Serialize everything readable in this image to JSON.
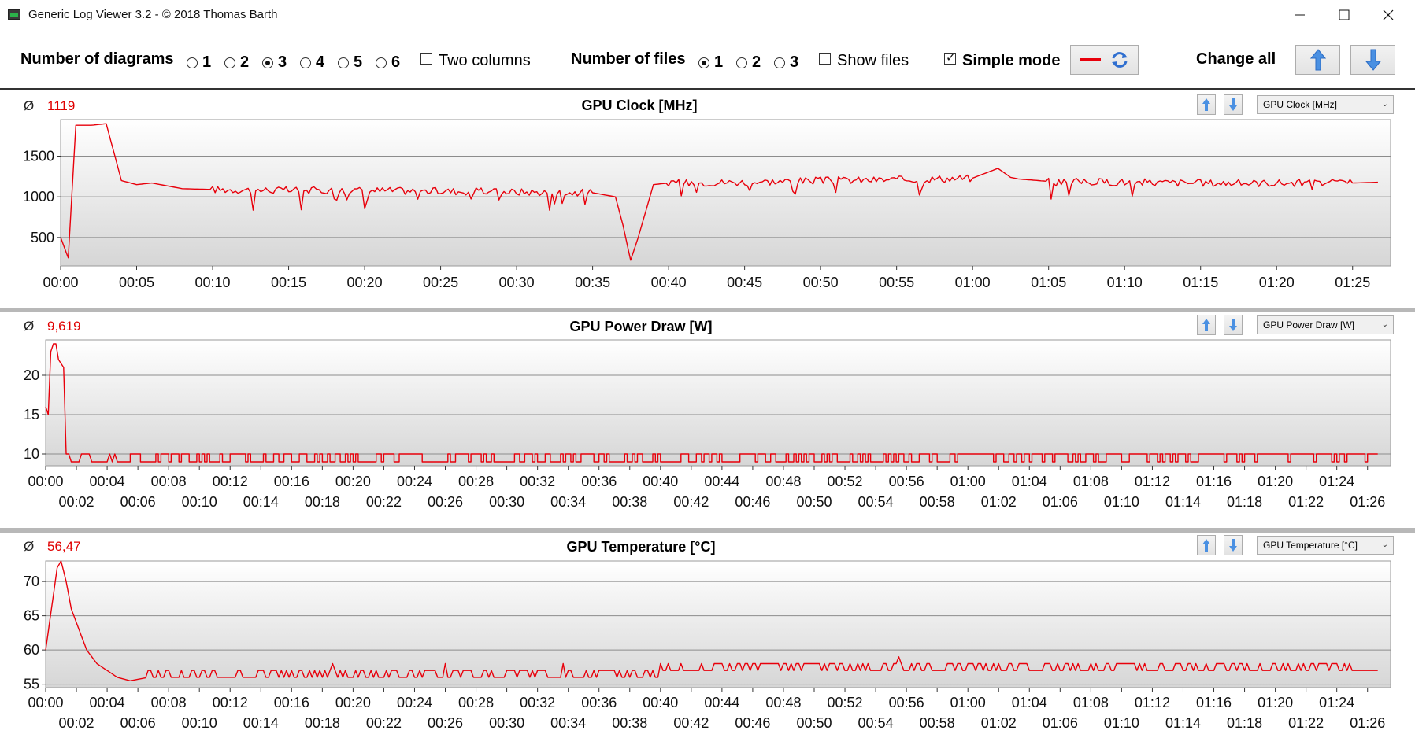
{
  "window": {
    "title": "Generic Log Viewer 3.2 - © 2018 Thomas Barth"
  },
  "toolbar": {
    "number_of_diagrams_label": "Number of diagrams",
    "diagram_options": [
      "1",
      "2",
      "3",
      "4",
      "5",
      "6"
    ],
    "diagram_selected": "3",
    "two_columns_label": "Two columns",
    "two_columns_checked": false,
    "number_of_files_label": "Number of files",
    "file_options": [
      "1",
      "2",
      "3"
    ],
    "file_selected": "1",
    "show_files_label": "Show files",
    "show_files_checked": false,
    "simple_mode_label": "Simple mode",
    "simple_mode_checked": true,
    "change_all_label": "Change all"
  },
  "colors": {
    "series": "#e8000b",
    "accent_arrow": "#3b7fd9"
  },
  "chart_data": [
    {
      "type": "line",
      "title": "GPU Clock [MHz]",
      "average_symbol": "Ø",
      "average": "1119",
      "dropdown": "GPU Clock [MHz]",
      "xlabel": "",
      "ylabel": "",
      "x_ticks": [
        "00:00",
        "00:05",
        "00:10",
        "00:15",
        "00:20",
        "00:25",
        "00:30",
        "00:35",
        "00:40",
        "00:45",
        "00:50",
        "00:55",
        "01:00",
        "01:05",
        "01:10",
        "01:15",
        "01:20",
        "01:25"
      ],
      "y_ticks": [
        500,
        1000,
        1500
      ],
      "xlim": [
        0,
        5250
      ],
      "ylim": [
        150,
        1950
      ],
      "grid": true,
      "series": [
        {
          "name": "",
          "x": [
            0,
            30,
            60,
            120,
            180,
            240,
            300,
            360,
            480,
            600,
            900,
            1200,
            1500,
            1800,
            2100,
            2190,
            2220,
            2250,
            2280,
            2340,
            2400,
            2700,
            3000,
            3300,
            3600,
            3700,
            3750,
            3780,
            3900,
            4200,
            4500,
            4800,
            5100,
            5200
          ],
          "y": [
            500,
            250,
            1880,
            1880,
            1900,
            1200,
            1150,
            1170,
            1100,
            1090,
            1080,
            1080,
            1070,
            1060,
            1050,
            1000,
            650,
            220,
            500,
            1150,
            1170,
            1180,
            1200,
            1210,
            1230,
            1350,
            1240,
            1220,
            1190,
            1180,
            1170,
            1170,
            1170,
            1180
          ]
        }
      ]
    },
    {
      "type": "line",
      "title": "GPU Power Draw [W]",
      "average_symbol": "Ø",
      "average": "9,619",
      "dropdown": "GPU Power Draw [W]",
      "xlabel": "",
      "ylabel": "",
      "x_ticks_top": [
        "00:00",
        "00:04",
        "00:08",
        "00:12",
        "00:16",
        "00:20",
        "00:24",
        "00:28",
        "00:32",
        "00:36",
        "00:40",
        "00:44",
        "00:48",
        "00:52",
        "00:56",
        "01:00",
        "01:04",
        "01:08",
        "01:12",
        "01:16",
        "01:20",
        "01:24"
      ],
      "x_ticks_bottom": [
        "00:02",
        "00:06",
        "00:10",
        "00:14",
        "00:18",
        "00:22",
        "00:26",
        "00:30",
        "00:34",
        "00:38",
        "00:42",
        "00:46",
        "00:50",
        "00:54",
        "00:58",
        "01:02",
        "01:06",
        "01:10",
        "01:14",
        "01:18",
        "01:22",
        "01:26"
      ],
      "y_ticks": [
        10,
        15,
        20
      ],
      "xlim": [
        0,
        5250
      ],
      "ylim": [
        8.5,
        24.5
      ],
      "grid": true,
      "series": [
        {
          "name": "",
          "x": [
            0,
            10,
            20,
            30,
            40,
            50,
            70,
            80,
            90,
            300,
            5200
          ],
          "y": [
            16,
            15,
            23,
            24,
            24,
            22,
            21,
            10,
            10,
            10,
            10
          ],
          "baseline_low": 9,
          "baseline_high": 10
        }
      ]
    },
    {
      "type": "line",
      "title": "GPU Temperature [°C]",
      "average_symbol": "Ø",
      "average": "56,47",
      "dropdown": "GPU Temperature [°C]",
      "xlabel": "",
      "ylabel": "",
      "x_ticks_top": [
        "00:00",
        "00:04",
        "00:08",
        "00:12",
        "00:16",
        "00:20",
        "00:24",
        "00:28",
        "00:32",
        "00:36",
        "00:40",
        "00:44",
        "00:48",
        "00:52",
        "00:56",
        "01:00",
        "01:04",
        "01:08",
        "01:12",
        "01:16",
        "01:20",
        "01:24"
      ],
      "x_ticks_bottom": [
        "00:02",
        "00:06",
        "00:10",
        "00:14",
        "00:18",
        "00:22",
        "00:26",
        "00:30",
        "00:34",
        "00:38",
        "00:42",
        "00:46",
        "00:50",
        "00:54",
        "00:58",
        "01:02",
        "01:06",
        "01:10",
        "01:14",
        "01:18",
        "01:22",
        "01:26"
      ],
      "y_ticks": [
        55,
        60,
        65,
        70
      ],
      "xlim": [
        0,
        5250
      ],
      "ylim": [
        54.5,
        73
      ],
      "grid": true,
      "series": [
        {
          "name": "",
          "x": [
            0,
            30,
            45,
            60,
            80,
            100,
            130,
            160,
            200,
            240,
            280,
            330,
            400,
            600,
            1200,
            1800,
            2400,
            3000,
            3600,
            4200,
            4500,
            4800,
            5100,
            5200
          ],
          "y": [
            60,
            68,
            72,
            73,
            70,
            66,
            63,
            60,
            58,
            57,
            56,
            55.5,
            56,
            56,
            56,
            56,
            56.5,
            56.5,
            56.5,
            56.5,
            57,
            57,
            57,
            57
          ]
        }
      ]
    }
  ]
}
